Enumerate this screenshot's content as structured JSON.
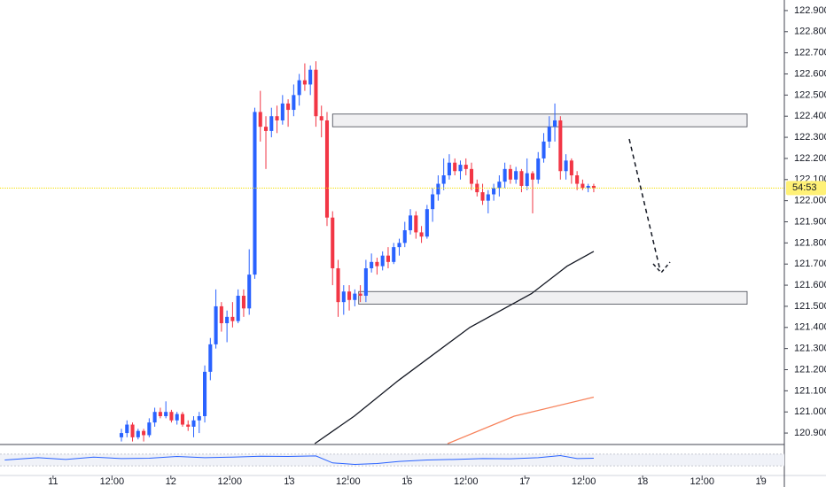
{
  "chart_data": {
    "type": "candlestick",
    "xlim": [
      -21.85,
      119.3
    ],
    "ylim": [
      120.85,
      122.95
    ],
    "grid": false,
    "up_color": "#2962ff",
    "down_color": "#f23645",
    "x": [
      0,
      1,
      2,
      3,
      4,
      5,
      6,
      7,
      8,
      9,
      10,
      11,
      12,
      13,
      14,
      15,
      16,
      17,
      18,
      19,
      20,
      21,
      22,
      23,
      24,
      25,
      26,
      27,
      28,
      29,
      30,
      31,
      32,
      33,
      34,
      35,
      36,
      37,
      38,
      39,
      40,
      41,
      42,
      43,
      44,
      45,
      46,
      47,
      48,
      49,
      50,
      51,
      52,
      53,
      54,
      55,
      56,
      57,
      58,
      59,
      60,
      61,
      62,
      63,
      64,
      65,
      66,
      67,
      68,
      69,
      70,
      71,
      72,
      73,
      74,
      75,
      76,
      77,
      78,
      79,
      80,
      81,
      82,
      83,
      84,
      85
    ],
    "ohlc": [
      [
        120.88,
        120.92,
        120.86,
        120.9
      ],
      [
        120.9,
        120.96,
        120.88,
        120.94
      ],
      [
        120.94,
        120.95,
        120.86,
        120.88
      ],
      [
        120.88,
        120.92,
        120.87,
        120.91
      ],
      [
        120.91,
        120.92,
        120.86,
        120.89
      ],
      [
        120.89,
        120.97,
        120.88,
        120.95
      ],
      [
        120.95,
        121.02,
        120.93,
        121.0
      ],
      [
        121.0,
        121.02,
        120.97,
        120.98
      ],
      [
        120.98,
        121.05,
        120.97,
        121.0
      ],
      [
        121.0,
        121.01,
        120.95,
        120.96
      ],
      [
        120.96,
        121.0,
        120.94,
        120.99
      ],
      [
        120.99,
        121.0,
        120.93,
        120.94
      ],
      [
        120.94,
        120.96,
        120.91,
        120.93
      ],
      [
        120.93,
        120.98,
        120.88,
        120.96
      ],
      [
        120.96,
        121.0,
        120.9,
        120.98
      ],
      [
        120.98,
        121.22,
        120.95,
        121.19
      ],
      [
        121.19,
        121.35,
        121.15,
        121.32
      ],
      [
        121.32,
        121.58,
        121.3,
        121.5
      ],
      [
        121.5,
        121.52,
        121.38,
        121.42
      ],
      [
        121.42,
        121.48,
        121.33,
        121.45
      ],
      [
        121.45,
        121.52,
        121.4,
        121.43
      ],
      [
        121.43,
        121.58,
        121.42,
        121.55
      ],
      [
        121.55,
        121.58,
        121.45,
        121.49
      ],
      [
        121.49,
        121.77,
        121.46,
        121.65
      ],
      [
        121.65,
        122.44,
        121.63,
        122.42
      ],
      [
        122.42,
        122.52,
        122.28,
        122.35
      ],
      [
        122.35,
        122.4,
        122.15,
        122.33
      ],
      [
        122.33,
        122.44,
        122.3,
        122.4
      ],
      [
        122.4,
        122.45,
        122.32,
        122.38
      ],
      [
        122.38,
        122.5,
        122.36,
        122.46
      ],
      [
        122.46,
        122.48,
        122.35,
        122.43
      ],
      [
        122.43,
        122.55,
        122.4,
        122.5
      ],
      [
        122.5,
        122.6,
        122.45,
        122.57
      ],
      [
        122.57,
        122.65,
        122.52,
        122.55
      ],
      [
        122.55,
        122.64,
        122.5,
        122.62
      ],
      [
        122.62,
        122.66,
        122.35,
        122.4
      ],
      [
        122.4,
        122.45,
        122.3,
        122.38
      ],
      [
        122.38,
        122.42,
        121.88,
        121.92
      ],
      [
        121.92,
        121.95,
        121.6,
        121.68
      ],
      [
        121.68,
        121.72,
        121.45,
        121.52
      ],
      [
        121.52,
        121.6,
        121.46,
        121.57
      ],
      [
        121.57,
        121.6,
        121.48,
        121.53
      ],
      [
        121.53,
        121.58,
        121.5,
        121.56
      ],
      [
        121.56,
        121.6,
        121.52,
        121.55
      ],
      [
        121.55,
        121.72,
        121.52,
        121.68
      ],
      [
        121.68,
        121.75,
        121.66,
        121.71
      ],
      [
        121.71,
        121.73,
        121.65,
        121.69
      ],
      [
        121.69,
        121.76,
        121.67,
        121.74
      ],
      [
        121.74,
        121.78,
        121.68,
        121.71
      ],
      [
        121.71,
        121.8,
        121.7,
        121.78
      ],
      [
        121.78,
        121.82,
        121.74,
        121.8
      ],
      [
        121.8,
        121.9,
        121.78,
        121.86
      ],
      [
        121.86,
        121.96,
        121.84,
        121.93
      ],
      [
        121.93,
        121.95,
        121.82,
        121.85
      ],
      [
        121.85,
        121.88,
        121.8,
        121.83
      ],
      [
        121.83,
        121.98,
        121.82,
        121.96
      ],
      [
        121.96,
        122.06,
        121.9,
        122.03
      ],
      [
        122.03,
        122.12,
        122.0,
        122.08
      ],
      [
        122.08,
        122.2,
        122.05,
        122.12
      ],
      [
        122.12,
        122.22,
        122.1,
        122.18
      ],
      [
        122.18,
        122.2,
        122.12,
        122.14
      ],
      [
        122.14,
        122.19,
        122.1,
        122.17
      ],
      [
        122.17,
        122.2,
        122.12,
        122.15
      ],
      [
        122.15,
        122.18,
        122.05,
        122.08
      ],
      [
        122.08,
        122.1,
        122.02,
        122.04
      ],
      [
        122.04,
        122.08,
        121.98,
        122.0
      ],
      [
        122.0,
        122.05,
        121.94,
        122.03
      ],
      [
        122.03,
        122.08,
        122.0,
        122.06
      ],
      [
        122.06,
        122.12,
        122.02,
        122.09
      ],
      [
        122.09,
        122.18,
        122.06,
        122.15
      ],
      [
        122.15,
        122.17,
        122.08,
        122.1
      ],
      [
        122.1,
        122.16,
        122.08,
        122.14
      ],
      [
        122.14,
        122.15,
        122.04,
        122.07
      ],
      [
        122.07,
        122.2,
        122.05,
        122.13
      ],
      [
        122.13,
        122.14,
        121.94,
        122.1
      ],
      [
        122.1,
        122.23,
        122.08,
        122.2
      ],
      [
        122.2,
        122.32,
        122.18,
        122.28
      ],
      [
        122.28,
        122.4,
        122.25,
        122.35
      ],
      [
        122.35,
        122.46,
        122.28,
        122.38
      ],
      [
        122.38,
        122.4,
        122.1,
        122.14
      ],
      [
        122.14,
        122.22,
        122.1,
        122.19
      ],
      [
        122.19,
        122.2,
        122.08,
        122.12
      ],
      [
        122.12,
        122.14,
        122.05,
        122.08
      ],
      [
        122.08,
        122.1,
        122.05,
        122.06
      ],
      [
        122.06,
        122.08,
        122.04,
        122.07
      ],
      [
        122.07,
        122.08,
        122.04,
        122.06
      ]
    ],
    "lines": [
      {
        "color": "#131722",
        "x": [
          34.8,
          41.9,
          49.9,
          62.7,
          73.8,
          80.2,
          85.0
        ],
        "values": [
          120.85,
          120.98,
          121.15,
          121.4,
          121.56,
          121.69,
          121.76
        ]
      },
      {
        "color": "#f7825b",
        "x": [
          58.7,
          70.7,
          85.0
        ],
        "values": [
          120.85,
          120.98,
          121.07
        ]
      }
    ],
    "zones": [
      {
        "from": 122.35,
        "to": 122.41,
        "start": 38.0,
        "end": 112.6
      },
      {
        "from": 121.51,
        "to": 121.57,
        "start": 42.7,
        "end": 112.6
      }
    ],
    "countdown": "54:53",
    "yticks": [
      {
        "value": 120.9,
        "label": "120.900"
      },
      {
        "value": 121.0,
        "label": "121.000"
      },
      {
        "value": 121.1,
        "label": "121.100"
      },
      {
        "value": 121.2,
        "label": "121.200"
      },
      {
        "value": 121.3,
        "label": "121.300"
      },
      {
        "value": 121.4,
        "label": "121.400"
      },
      {
        "value": 121.5,
        "label": "121.500"
      },
      {
        "value": 121.6,
        "label": "121.600"
      },
      {
        "value": 121.7,
        "label": "121.700"
      },
      {
        "value": 121.8,
        "label": "121.800"
      },
      {
        "value": 121.9,
        "label": "121.900"
      },
      {
        "value": 122.0,
        "label": "122.000"
      },
      {
        "value": 122.1,
        "label": "122.100"
      },
      {
        "value": 122.2,
        "label": "122.200"
      },
      {
        "value": 122.3,
        "label": "122.300"
      },
      {
        "value": 122.4,
        "label": "122.400"
      },
      {
        "value": 122.5,
        "label": "122.500"
      },
      {
        "value": 122.6,
        "label": "122.600"
      },
      {
        "value": 122.7,
        "label": "122.700"
      },
      {
        "value": 122.8,
        "label": "122.800"
      },
      {
        "value": 122.9,
        "label": "122.900"
      }
    ],
    "xticks": [
      {
        "value": -12.3,
        "label": "11"
      },
      {
        "value": -1.7,
        "label": "12:00"
      },
      {
        "value": 8.9,
        "label": "12"
      },
      {
        "value": 19.5,
        "label": "12:00"
      },
      {
        "value": 30.2,
        "label": "13"
      },
      {
        "value": 40.8,
        "label": "12:00"
      },
      {
        "value": 51.4,
        "label": "16"
      },
      {
        "value": 62.0,
        "label": "12:00"
      },
      {
        "value": 72.6,
        "label": "17"
      },
      {
        "value": 83.2,
        "label": "12:00"
      },
      {
        "value": 93.8,
        "label": "18"
      },
      {
        "value": 104.5,
        "label": "12:00"
      },
      {
        "value": 115.1,
        "label": "19"
      }
    ],
    "indicator": {
      "color": "#2962ff",
      "ylim": [
        0,
        100
      ],
      "band": [
        30,
        70
      ],
      "x": [
        -21,
        -15,
        -10,
        -5,
        0,
        5,
        10,
        15,
        20,
        25,
        30,
        35,
        38,
        42,
        46,
        50,
        55,
        60,
        65,
        70,
        75,
        79,
        82,
        85
      ],
      "values": [
        50,
        58,
        52,
        60,
        55,
        56,
        62,
        58,
        60,
        63,
        62,
        64,
        40,
        35,
        38,
        45,
        50,
        52,
        55,
        54,
        58,
        65,
        55,
        56
      ]
    }
  }
}
